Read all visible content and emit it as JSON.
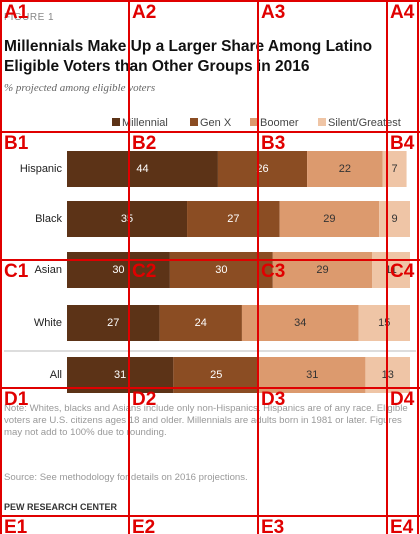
{
  "chart_data": {
    "type": "stacked-bar-horizontal",
    "figure_label": "FIGURE 1",
    "title": "Millennials Make Up a Larger Share Among Latino Eligible Voters than Other Groups in 2016",
    "subtitle": "% projected among eligible voters",
    "categories": [
      "Hispanic",
      "Black",
      "Asian",
      "White",
      "All"
    ],
    "xlim": [
      0,
      100
    ],
    "series": [
      {
        "name": "Millennial",
        "color": "#5c3317",
        "label_color": "#ffffff",
        "values": [
          44,
          35,
          30,
          27,
          31
        ]
      },
      {
        "name": "Gen X",
        "color": "#8b4d23",
        "label_color": "#ffffff",
        "values": [
          26,
          27,
          30,
          24,
          25
        ]
      },
      {
        "name": "Boomer",
        "color": "#dc9a6e",
        "label_color": "#333333",
        "values": [
          22,
          29,
          29,
          34,
          31
        ]
      },
      {
        "name": "Silent/Greatest",
        "color": "#efc5a6",
        "label_color": "#333333",
        "values": [
          7,
          9,
          11,
          15,
          13
        ]
      }
    ],
    "note": "Note: Whites, blacks and Asians include only non-Hispanics. Hispanics are of any race. Eligible voters are U.S. citizens ages 18 and older. Millennials are adults born in 1981 or later. Figures may not add to 100% due to rounding.",
    "source": "Source: See methodology for details on 2016 projections.",
    "credit": "PEW RESEARCH CENTER"
  },
  "overlay": {
    "labels": [
      [
        "A1",
        "A2",
        "A3",
        "A4"
      ],
      [
        "B1",
        "B2",
        "B3",
        "B4"
      ],
      [
        "C1",
        "C2",
        "C3",
        "C4"
      ],
      [
        "D1",
        "D2",
        "D3",
        "D4"
      ],
      [
        "E1",
        "E2",
        "E3",
        "E4"
      ]
    ]
  }
}
